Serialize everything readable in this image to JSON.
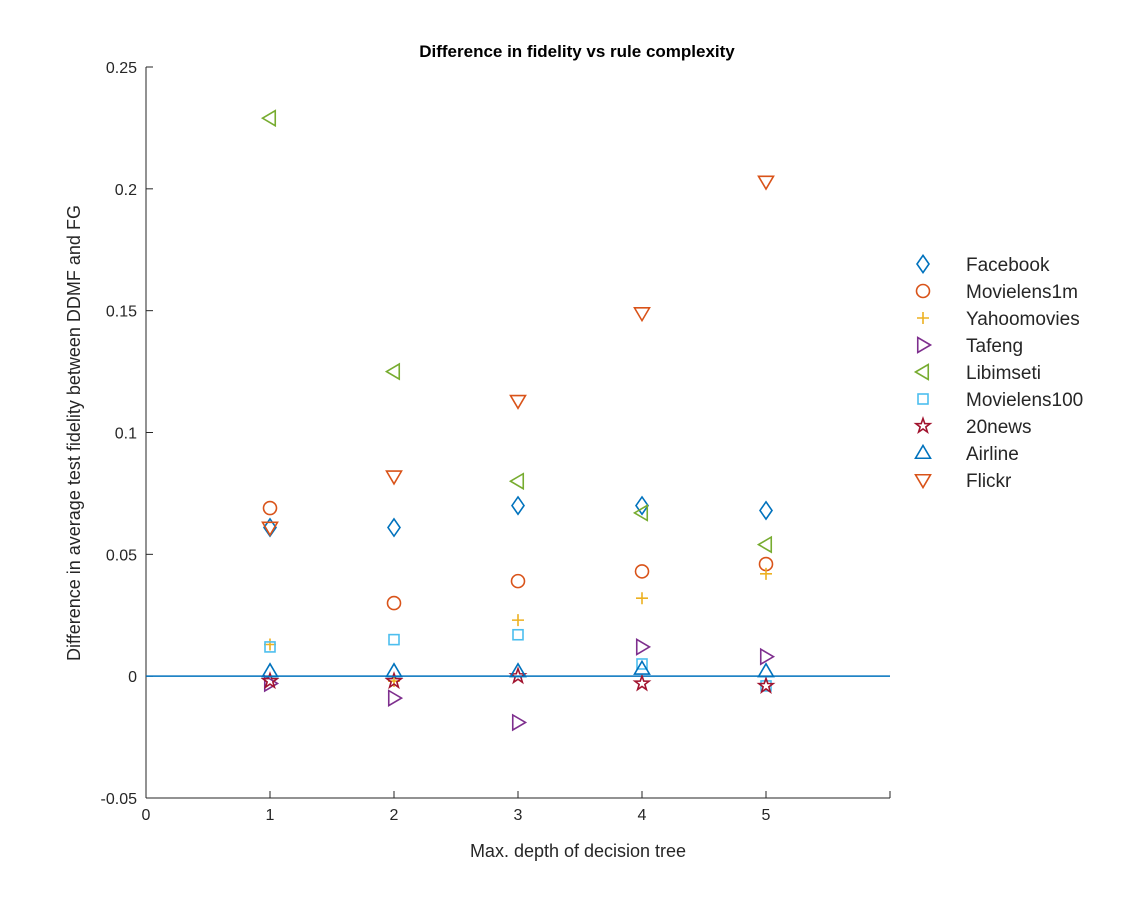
{
  "chart_data": {
    "type": "scatter",
    "title": "Difference in fidelity vs rule complexity",
    "xlabel": "Max. depth of decision tree",
    "ylabel": "Difference in average test fidelity between DDMF and FG",
    "xlim": [
      0,
      6
    ],
    "ylim": [
      -0.05,
      0.25
    ],
    "xticks": [
      0,
      1,
      2,
      3,
      4,
      5
    ],
    "xtick_labels": [
      "0",
      "1",
      "2",
      "3",
      "4",
      "5"
    ],
    "yticks": [
      -0.05,
      0,
      0.05,
      0.1,
      0.15,
      0.2,
      0.25
    ],
    "ytick_labels": [
      "-0.05",
      "0",
      "0.05",
      "0.1",
      "0.15",
      "0.2",
      "0.25"
    ],
    "grid": false,
    "legend_position": "outside-right",
    "reference_line": {
      "y": 0,
      "color": "#0072BD"
    },
    "series": [
      {
        "name": "Facebook",
        "marker": "diamond",
        "color": "#0072BD",
        "x": [
          1,
          2,
          3,
          4,
          5
        ],
        "y": [
          0.061,
          0.061,
          0.07,
          0.07,
          0.068
        ]
      },
      {
        "name": "Movielens1m",
        "marker": "circle",
        "color": "#D95319",
        "x": [
          1,
          2,
          3,
          4,
          5
        ],
        "y": [
          0.069,
          0.03,
          0.039,
          0.043,
          0.046
        ]
      },
      {
        "name": "Yahoomovies",
        "marker": "plus",
        "color": "#EDB120",
        "x": [
          1,
          2,
          3,
          4,
          5
        ],
        "y": [
          0.013,
          -0.002,
          0.023,
          0.032,
          0.042
        ]
      },
      {
        "name": "Tafeng",
        "marker": "triangle-right",
        "color": "#7E2F8E",
        "x": [
          1,
          2,
          3,
          4,
          5
        ],
        "y": [
          -0.003,
          -0.009,
          -0.019,
          0.012,
          0.008
        ]
      },
      {
        "name": "Libimseti",
        "marker": "triangle-left",
        "color": "#77AC30",
        "x": [
          1,
          2,
          3,
          4,
          5
        ],
        "y": [
          0.229,
          0.125,
          0.08,
          0.067,
          0.054
        ]
      },
      {
        "name": "Movielens100",
        "marker": "square",
        "color": "#4DBEEE",
        "x": [
          1,
          2,
          3,
          4,
          5
        ],
        "y": [
          0.012,
          0.015,
          0.017,
          0.005,
          -0.004
        ]
      },
      {
        "name": "20news",
        "marker": "star",
        "color": "#A2142F",
        "x": [
          1,
          2,
          3,
          4,
          5
        ],
        "y": [
          -0.002,
          -0.002,
          0.0,
          -0.003,
          -0.004
        ]
      },
      {
        "name": "Airline",
        "marker": "triangle-up",
        "color": "#0072BD",
        "x": [
          1,
          2,
          3,
          4,
          5
        ],
        "y": [
          0.002,
          0.002,
          0.002,
          0.003,
          0.002
        ]
      },
      {
        "name": "Flickr",
        "marker": "triangle-down",
        "color": "#D95319",
        "x": [
          1,
          2,
          3,
          4,
          5
        ],
        "y": [
          0.061,
          0.082,
          0.113,
          0.149,
          0.203
        ]
      }
    ]
  }
}
